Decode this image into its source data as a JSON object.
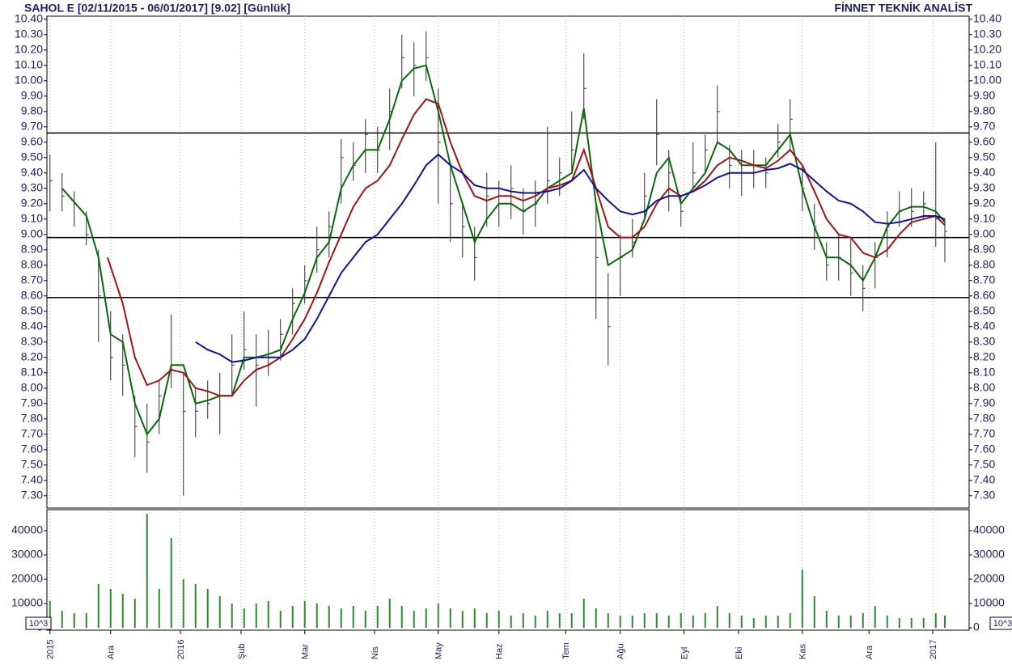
{
  "chart_data": [
    {
      "type": "ohlc",
      "title": "SAHOL E  [02/11/2015 - 06/01/2017]  [9.02]  [Günlük]",
      "title_right": "FİNNET TEKNİK ANALİST",
      "color": "#2a2a2a",
      "x": [
        0,
        4,
        8,
        12,
        16,
        20,
        24,
        28,
        32,
        36,
        40,
        44,
        48,
        52,
        56,
        60,
        64,
        68,
        72,
        76,
        80,
        84,
        88,
        92,
        96,
        100,
        104,
        108,
        112,
        116,
        120,
        124,
        128,
        132,
        136,
        140,
        144,
        148,
        152,
        156,
        160,
        164,
        168,
        172,
        176,
        180,
        184,
        188,
        192,
        196,
        200,
        204,
        208,
        212,
        216,
        220,
        224,
        228,
        232,
        236,
        240,
        244,
        248,
        252,
        256,
        260,
        264,
        268,
        272,
        276,
        280,
        284,
        288,
        292,
        295
      ],
      "high": [
        9.52,
        9.4,
        9.28,
        9.15,
        8.9,
        8.5,
        8.35,
        7.95,
        7.9,
        8.05,
        8.48,
        8.1,
        8.0,
        8.05,
        8.1,
        8.35,
        8.5,
        8.35,
        8.38,
        8.45,
        8.65,
        8.8,
        9.05,
        9.15,
        9.62,
        9.6,
        9.75,
        9.7,
        9.95,
        10.3,
        10.25,
        10.32,
        9.95,
        9.45,
        9.2,
        9.05,
        9.4,
        9.35,
        9.45,
        9.3,
        9.35,
        9.7,
        9.5,
        9.8,
        10.18,
        9.2,
        8.75,
        9.0,
        9.1,
        9.4,
        9.88,
        9.55,
        9.25,
        9.6,
        9.65,
        9.97,
        9.58,
        9.55,
        9.55,
        9.5,
        9.72,
        9.88,
        9.45,
        9.2,
        8.95,
        9.0,
        8.98,
        8.8,
        8.95,
        9.15,
        9.28,
        9.3,
        9.28,
        9.6,
        9.1
      ],
      "low": [
        9.15,
        9.15,
        9.05,
        8.93,
        8.3,
        8.05,
        7.95,
        7.55,
        7.45,
        7.7,
        8.0,
        7.3,
        7.68,
        7.8,
        7.7,
        7.95,
        8.12,
        7.88,
        8.08,
        8.18,
        8.35,
        8.55,
        8.75,
        8.85,
        9.2,
        9.35,
        9.4,
        9.4,
        9.55,
        9.95,
        9.9,
        10.0,
        9.2,
        8.95,
        8.85,
        8.7,
        9.05,
        9.05,
        9.1,
        9.0,
        9.05,
        9.2,
        9.25,
        9.4,
        9.75,
        8.45,
        8.15,
        8.6,
        8.85,
        9.1,
        9.45,
        9.15,
        9.05,
        9.3,
        9.4,
        9.6,
        9.3,
        9.25,
        9.3,
        9.3,
        9.5,
        9.55,
        9.15,
        8.9,
        8.7,
        8.7,
        8.6,
        8.5,
        8.65,
        8.85,
        9.05,
        9.05,
        9.1,
        8.92,
        8.82
      ],
      "close": [
        9.35,
        9.25,
        9.2,
        9.0,
        8.6,
        8.2,
        8.15,
        7.75,
        7.65,
        7.95,
        8.15,
        7.85,
        7.85,
        7.9,
        7.95,
        8.15,
        8.25,
        8.15,
        8.2,
        8.35,
        8.55,
        8.7,
        8.9,
        9.05,
        9.5,
        9.45,
        9.65,
        9.55,
        9.8,
        10.15,
        10.1,
        10.15,
        9.6,
        9.2,
        9.05,
        8.85,
        9.25,
        9.2,
        9.3,
        9.15,
        9.2,
        9.35,
        9.4,
        9.55,
        9.95,
        8.85,
        8.4,
        8.85,
        8.95,
        9.25,
        9.65,
        9.4,
        9.15,
        9.4,
        9.55,
        9.8,
        9.45,
        9.4,
        9.45,
        9.4,
        9.6,
        9.75,
        9.3,
        9.05,
        8.8,
        8.85,
        8.75,
        8.65,
        8.85,
        9.05,
        9.15,
        9.15,
        9.2,
        9.1,
        9.02
      ],
      "series": [
        {
          "color": "#0a6a0a",
          "x": [
            4,
            12,
            16,
            20,
            24,
            28,
            32,
            36,
            40,
            44,
            48,
            52,
            56,
            60,
            64,
            68,
            72,
            76,
            80,
            84,
            88,
            92,
            96,
            100,
            104,
            108,
            112,
            116,
            120,
            124,
            128,
            132,
            136,
            140,
            144,
            148,
            152,
            156,
            160,
            164,
            168,
            172,
            176,
            180,
            184,
            188,
            192,
            196,
            200,
            204,
            208,
            212,
            216,
            220,
            224,
            228,
            232,
            236,
            240,
            244,
            248,
            252,
            256,
            260,
            264,
            268,
            272,
            276,
            280,
            284,
            288,
            292,
            295
          ],
          "values": [
            9.3,
            9.12,
            8.85,
            8.35,
            8.3,
            7.9,
            7.7,
            7.8,
            8.15,
            8.15,
            7.9,
            7.92,
            7.95,
            7.95,
            8.2,
            8.2,
            8.22,
            8.25,
            8.45,
            8.62,
            8.85,
            8.95,
            9.3,
            9.45,
            9.55,
            9.55,
            9.75,
            10.0,
            10.08,
            10.1,
            9.8,
            9.45,
            9.2,
            8.95,
            9.1,
            9.2,
            9.2,
            9.15,
            9.2,
            9.3,
            9.35,
            9.4,
            9.82,
            9.2,
            8.8,
            8.85,
            8.9,
            9.1,
            9.4,
            9.5,
            9.2,
            9.3,
            9.4,
            9.6,
            9.55,
            9.45,
            9.45,
            9.45,
            9.55,
            9.65,
            9.3,
            9.05,
            8.85,
            8.85,
            8.8,
            8.7,
            8.85,
            9.05,
            9.15,
            9.18,
            9.18,
            9.15,
            9.08
          ]
        },
        {
          "color": "#a01515",
          "x": [
            19,
            24,
            28,
            32,
            36,
            40,
            44,
            48,
            52,
            56,
            60,
            64,
            68,
            72,
            76,
            80,
            84,
            88,
            92,
            96,
            100,
            104,
            108,
            112,
            116,
            120,
            124,
            128,
            132,
            136,
            140,
            144,
            148,
            152,
            156,
            160,
            164,
            168,
            172,
            176,
            180,
            184,
            188,
            192,
            196,
            200,
            204,
            208,
            212,
            216,
            220,
            224,
            228,
            232,
            236,
            240,
            244,
            248,
            252,
            256,
            260,
            264,
            268,
            272,
            276,
            280,
            284,
            288,
            292,
            295
          ],
          "values": [
            8.85,
            8.55,
            8.2,
            8.02,
            8.05,
            8.12,
            8.1,
            8.0,
            7.98,
            7.95,
            7.95,
            8.05,
            8.12,
            8.15,
            8.2,
            8.32,
            8.45,
            8.62,
            8.82,
            9.0,
            9.18,
            9.3,
            9.35,
            9.45,
            9.62,
            9.78,
            9.88,
            9.85,
            9.6,
            9.4,
            9.25,
            9.22,
            9.25,
            9.25,
            9.22,
            9.25,
            9.3,
            9.32,
            9.35,
            9.55,
            9.3,
            9.05,
            8.98,
            8.98,
            9.05,
            9.2,
            9.3,
            9.25,
            9.28,
            9.35,
            9.45,
            9.5,
            9.48,
            9.45,
            9.43,
            9.48,
            9.55,
            9.45,
            9.28,
            9.1,
            9.0,
            8.98,
            8.88,
            8.85,
            8.9,
            9.0,
            9.08,
            9.1,
            9.12,
            9.06
          ]
        },
        {
          "color": "#12129a",
          "x": [
            48,
            52,
            56,
            60,
            64,
            68,
            72,
            76,
            80,
            84,
            88,
            92,
            96,
            100,
            104,
            108,
            112,
            116,
            120,
            124,
            128,
            132,
            136,
            140,
            144,
            148,
            152,
            156,
            160,
            164,
            168,
            172,
            176,
            180,
            184,
            188,
            192,
            196,
            200,
            204,
            208,
            212,
            216,
            220,
            224,
            228,
            232,
            236,
            240,
            244,
            248,
            252,
            256,
            260,
            264,
            268,
            272,
            276,
            280,
            284,
            288,
            292,
            295
          ],
          "values": [
            8.3,
            8.25,
            8.22,
            8.17,
            8.18,
            8.2,
            8.2,
            8.2,
            8.25,
            8.32,
            8.45,
            8.6,
            8.75,
            8.85,
            8.95,
            9.0,
            9.1,
            9.2,
            9.32,
            9.45,
            9.52,
            9.45,
            9.4,
            9.32,
            9.3,
            9.3,
            9.28,
            9.27,
            9.27,
            9.28,
            9.3,
            9.35,
            9.42,
            9.3,
            9.22,
            9.15,
            9.13,
            9.15,
            9.22,
            9.25,
            9.25,
            9.28,
            9.32,
            9.37,
            9.4,
            9.4,
            9.4,
            9.42,
            9.43,
            9.46,
            9.42,
            9.35,
            9.28,
            9.22,
            9.2,
            9.15,
            9.08,
            9.07,
            9.08,
            9.1,
            9.12,
            9.12,
            9.1
          ]
        }
      ],
      "hlines": {
        "values": [
          9.66,
          8.98,
          8.59
        ],
        "color": "#000000"
      },
      "xlim": [
        -1,
        303
      ],
      "ylim": [
        7.22,
        10.42
      ],
      "yticks": [
        {
          "value": 7.3,
          "label": "7.30"
        },
        {
          "value": 7.4,
          "label": "7.40"
        },
        {
          "value": 7.5,
          "label": "7.50"
        },
        {
          "value": 7.6,
          "label": "7.60"
        },
        {
          "value": 7.7,
          "label": "7.70"
        },
        {
          "value": 7.8,
          "label": "7.80"
        },
        {
          "value": 7.9,
          "label": "7.90"
        },
        {
          "value": 8.0,
          "label": "8.00"
        },
        {
          "value": 8.1,
          "label": "8.10"
        },
        {
          "value": 8.2,
          "label": "8.20"
        },
        {
          "value": 8.3,
          "label": "8.30"
        },
        {
          "value": 8.4,
          "label": "8.40"
        },
        {
          "value": 8.5,
          "label": "8.50"
        },
        {
          "value": 8.6,
          "label": "8.60"
        },
        {
          "value": 8.7,
          "label": "8.70"
        },
        {
          "value": 8.8,
          "label": "8.80"
        },
        {
          "value": 8.9,
          "label": "8.90"
        },
        {
          "value": 9.0,
          "label": "9.00"
        },
        {
          "value": 9.1,
          "label": "9.10"
        },
        {
          "value": 9.2,
          "label": "9.20"
        },
        {
          "value": 9.3,
          "label": "9.30"
        },
        {
          "value": 9.4,
          "label": "9.40"
        },
        {
          "value": 9.5,
          "label": "9.50"
        },
        {
          "value": 9.6,
          "label": "9.60"
        },
        {
          "value": 9.7,
          "label": "9.70"
        },
        {
          "value": 9.8,
          "label": "9.80"
        },
        {
          "value": 9.9,
          "label": "9.90"
        },
        {
          "value": 10.0,
          "label": "10.00"
        },
        {
          "value": 10.1,
          "label": "10.10"
        },
        {
          "value": 10.2,
          "label": "10.20"
        },
        {
          "value": 10.3,
          "label": "10.30"
        },
        {
          "value": 10.4,
          "label": "10.40"
        }
      ]
    },
    {
      "type": "bar",
      "color": "#2e8b2e",
      "scale_label": "10^3",
      "x": [
        0,
        4,
        8,
        12,
        16,
        20,
        24,
        28,
        32,
        36,
        40,
        44,
        48,
        52,
        56,
        60,
        64,
        68,
        72,
        76,
        80,
        84,
        88,
        92,
        96,
        100,
        104,
        108,
        112,
        116,
        120,
        124,
        128,
        132,
        136,
        140,
        144,
        148,
        152,
        156,
        160,
        164,
        168,
        172,
        176,
        180,
        184,
        188,
        192,
        196,
        200,
        204,
        208,
        212,
        216,
        220,
        224,
        228,
        232,
        236,
        240,
        244,
        248,
        252,
        256,
        260,
        264,
        268,
        272,
        276,
        280,
        284,
        288,
        292,
        295
      ],
      "values": [
        11000,
        7000,
        6000,
        6000,
        18000,
        16000,
        14000,
        12000,
        47000,
        16000,
        37000,
        20000,
        18000,
        16000,
        13000,
        10000,
        8000,
        10000,
        11000,
        7000,
        9000,
        11000,
        10000,
        9000,
        8000,
        9000,
        7000,
        9000,
        12000,
        9000,
        7000,
        8000,
        10000,
        8000,
        7000,
        8000,
        6000,
        7000,
        5000,
        6000,
        5000,
        7000,
        6000,
        6000,
        12000,
        8000,
        6000,
        5000,
        5000,
        6000,
        6000,
        5000,
        6000,
        5000,
        6000,
        9000,
        6000,
        5000,
        4000,
        5000,
        5000,
        6000,
        24000,
        13000,
        7000,
        5000,
        5000,
        6000,
        9000,
        5000,
        4000,
        4000,
        4000,
        6000,
        5000
      ],
      "xlim": [
        -1,
        303
      ],
      "ylim": [
        0,
        49000
      ],
      "yticks": [
        0,
        10000,
        20000,
        30000,
        40000
      ],
      "xticks": [
        {
          "value": 0,
          "label": "2015"
        },
        {
          "value": 20,
          "label": "Ara"
        },
        {
          "value": 43,
          "label": "2016"
        },
        {
          "value": 63,
          "label": "Şub"
        },
        {
          "value": 84,
          "label": "Mar"
        },
        {
          "value": 107,
          "label": "Nis"
        },
        {
          "value": 128,
          "label": "May"
        },
        {
          "value": 148,
          "label": "Haz"
        },
        {
          "value": 170,
          "label": "Tem"
        },
        {
          "value": 188,
          "label": "Ağu"
        },
        {
          "value": 209,
          "label": "Eyl"
        },
        {
          "value": 227,
          "label": "Eki"
        },
        {
          "value": 248,
          "label": "Kas"
        },
        {
          "value": 270,
          "label": "Ara"
        },
        {
          "value": 291,
          "label": "2017"
        }
      ]
    }
  ]
}
